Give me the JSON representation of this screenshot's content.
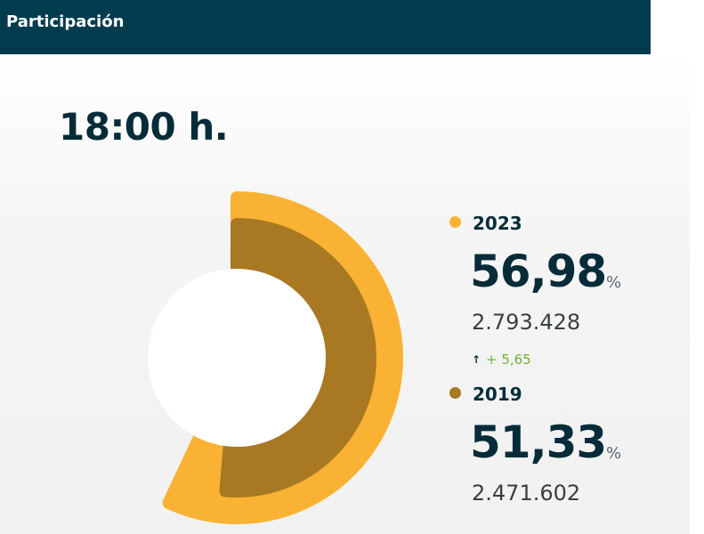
{
  "header": {
    "title": "Participación"
  },
  "time": {
    "label": "18:00 h."
  },
  "chart_data": {
    "type": "pie",
    "style": "concentric-radial-arcs",
    "unit": "%",
    "series": [
      {
        "name": "2023",
        "value": 56.98,
        "value_label": "56,98",
        "votes": "2.793.428",
        "color": "#f9b233"
      },
      {
        "name": "2019",
        "value": 51.33,
        "value_label": "51,33",
        "votes": "2.471.602",
        "color": "#a87822"
      }
    ],
    "difference": {
      "label": "+ 5,65",
      "direction": "up",
      "color": "#6bb52f"
    },
    "percent_sign": "%",
    "legend_placement": "right"
  },
  "colors": {
    "header_bg": "#003c4e",
    "text_dark": "#052c38"
  }
}
